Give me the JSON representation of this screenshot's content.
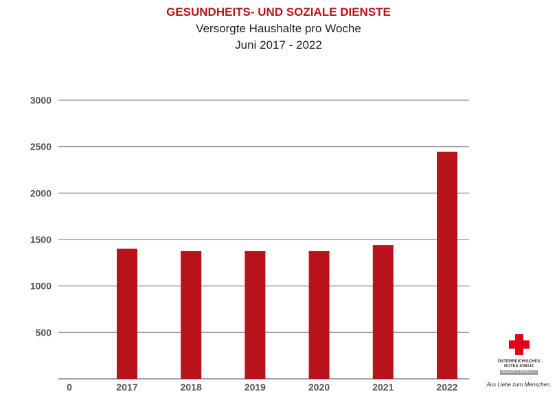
{
  "chart_data": {
    "type": "bar",
    "title": "GESUNDHEITS- UND SOZIALE DIENSTE",
    "subtitle": [
      "Versorgte Haushalte pro Woche",
      "Juni 2017 - 2022"
    ],
    "categories": [
      "2017",
      "2018",
      "2019",
      "2020",
      "2021",
      "2022"
    ],
    "values": [
      1400,
      1375,
      1375,
      1375,
      1440,
      2445
    ],
    "ylim": [
      0,
      3000
    ],
    "yticks": [
      "0",
      "500",
      "1000",
      "1500",
      "2000",
      "2500",
      "3000"
    ],
    "grid": true,
    "bar_color": "#b8121b",
    "xlabel": "",
    "ylabel": ""
  },
  "logo": {
    "line1": "ÖSTERREICHISCHES",
    "line2": "ROTES KREUZ",
    "line3": "NIEDERÖSTERREICH",
    "tagline": "Aus Liebe zum Menschen.",
    "color": "#e3001b"
  }
}
